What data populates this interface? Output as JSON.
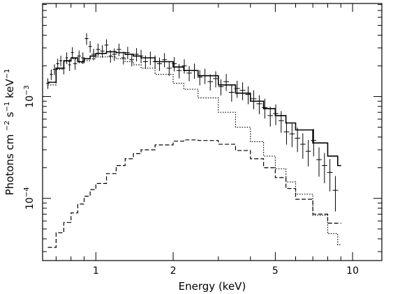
{
  "chart_data": {
    "type": "line",
    "title": "",
    "xlabel": "Energy (keV)",
    "ylabel": "Photons cm",
    "ylabel_tail": [
      {
        "text": "−2",
        "sup": true
      },
      {
        "text": " s",
        "sup": false
      },
      {
        "text": "−1",
        "sup": true
      },
      {
        "text": " keV",
        "sup": false
      },
      {
        "text": "−1",
        "sup": true
      }
    ],
    "x_scale": "log",
    "y_scale": "log",
    "xlim": [
      0.62,
      13.0
    ],
    "ylim": [
      2.45e-05,
      0.0082
    ],
    "x_ticks": [
      {
        "value": 1,
        "label": "1"
      },
      {
        "value": 2,
        "label": "2"
      },
      {
        "value": 5,
        "label": "5"
      },
      {
        "value": 10,
        "label": "10"
      }
    ],
    "x_minor_ticks": [
      0.7,
      0.8,
      0.9,
      3,
      4,
      6,
      7,
      8,
      9
    ],
    "y_ticks": [
      {
        "value": 0.0001,
        "base": "10",
        "exp": "−4"
      },
      {
        "value": 0.001,
        "base": "10",
        "exp": "−3"
      }
    ],
    "y_minor_ticks": [
      3e-05,
      4e-05,
      5e-05,
      6e-05,
      7e-05,
      8e-05,
      9e-05,
      0.0002,
      0.0003,
      0.0004,
      0.0005,
      0.0006,
      0.0007,
      0.0008,
      0.0009,
      0.002,
      0.003,
      0.004,
      0.005,
      0.006,
      0.007,
      0.008
    ],
    "series": [
      {
        "style": "data-crosses",
        "x": [
          0.65,
          0.67,
          0.69,
          0.71,
          0.73,
          0.75,
          0.77,
          0.79,
          0.81,
          0.83,
          0.86,
          0.89,
          0.92,
          0.95,
          0.98,
          1.02,
          1.06,
          1.1,
          1.14,
          1.18,
          1.23,
          1.28,
          1.33,
          1.38,
          1.44,
          1.5,
          1.56,
          1.63,
          1.7,
          1.77,
          1.85,
          1.93,
          2.02,
          2.11,
          2.21,
          2.31,
          2.42,
          2.54,
          2.66,
          2.79,
          2.93,
          3.07,
          3.22,
          3.38,
          3.55,
          3.73,
          3.92,
          4.12,
          4.33,
          4.55,
          4.78,
          5.02,
          5.27,
          5.53,
          5.81,
          6.1,
          6.4,
          6.72,
          7.05,
          7.4,
          7.77,
          8.16,
          8.57
        ],
        "y": [
          0.00135,
          0.00165,
          0.00185,
          0.0021,
          0.00225,
          0.0019,
          0.0024,
          0.00205,
          0.0027,
          0.0021,
          0.0025,
          0.0024,
          0.0037,
          0.0031,
          0.0026,
          0.0029,
          0.0028,
          0.0032,
          0.0025,
          0.0026,
          0.0029,
          0.0024,
          0.0027,
          0.0023,
          0.0026,
          0.0025,
          0.0022,
          0.0024,
          0.0022,
          0.0021,
          0.0023,
          0.0019,
          0.0021,
          0.0018,
          0.002,
          0.0017,
          0.0018,
          0.00155,
          0.0016,
          0.0014,
          0.0015,
          0.00125,
          0.0014,
          0.0011,
          0.0012,
          0.00115,
          0.00105,
          0.00095,
          0.00085,
          0.00078,
          0.00065,
          0.00068,
          0.00058,
          0.00045,
          0.00043,
          0.00039,
          0.00034,
          0.00029,
          0.00037,
          0.00024,
          0.00021,
          0.00018,
          0.00012
        ],
        "y_err_frac": [
          0.12,
          0.12,
          0.12,
          0.12,
          0.12,
          0.13,
          0.13,
          0.13,
          0.13,
          0.13,
          0.13,
          0.13,
          0.13,
          0.13,
          0.13,
          0.14,
          0.14,
          0.14,
          0.14,
          0.14,
          0.14,
          0.14,
          0.14,
          0.14,
          0.15,
          0.15,
          0.15,
          0.15,
          0.15,
          0.15,
          0.16,
          0.16,
          0.16,
          0.16,
          0.16,
          0.17,
          0.17,
          0.17,
          0.17,
          0.18,
          0.18,
          0.18,
          0.19,
          0.19,
          0.19,
          0.2,
          0.2,
          0.21,
          0.21,
          0.22,
          0.22,
          0.23,
          0.24,
          0.25,
          0.26,
          0.27,
          0.28,
          0.29,
          0.3,
          0.32,
          0.33,
          0.35,
          0.38
        ]
      },
      {
        "style": "step-solid",
        "x": [
          0.65,
          0.7,
          0.75,
          0.8,
          0.85,
          0.9,
          0.95,
          1.0,
          1.1,
          1.2,
          1.3,
          1.4,
          1.5,
          1.7,
          2.0,
          2.2,
          2.5,
          3.0,
          3.5,
          4.0,
          4.5,
          5.0,
          5.5,
          6.0,
          7.0,
          8.0,
          8.75
        ],
        "y": [
          0.00138,
          0.0019,
          0.00225,
          0.0024,
          0.0022,
          0.00235,
          0.0025,
          0.00265,
          0.00275,
          0.0027,
          0.0026,
          0.0025,
          0.0024,
          0.0022,
          0.00195,
          0.0018,
          0.0016,
          0.0013,
          0.00108,
          0.0009,
          0.00076,
          0.00065,
          0.00055,
          0.00047,
          0.00035,
          0.00026,
          0.00021
        ]
      },
      {
        "style": "step-dotted",
        "x": [
          0.65,
          0.7,
          0.75,
          0.8,
          0.85,
          0.9,
          0.95,
          1.0,
          1.1,
          1.2,
          1.3,
          1.4,
          1.5,
          1.7,
          2.0,
          2.2,
          2.5,
          3.0,
          3.5,
          4.0,
          4.5,
          5.0,
          5.5,
          6.0,
          7.0,
          8.0,
          8.75
        ],
        "y": [
          0.0013,
          0.00185,
          0.0022,
          0.00235,
          0.00215,
          0.00225,
          0.00235,
          0.00245,
          0.00245,
          0.00235,
          0.0022,
          0.00205,
          0.0019,
          0.00165,
          0.00135,
          0.00118,
          0.00097,
          0.0007,
          0.0005,
          0.00036,
          0.00026,
          0.000195,
          0.000145,
          0.00011,
          6.8e-05,
          4.5e-05,
          3.5e-05
        ]
      },
      {
        "style": "step-dashed",
        "x": [
          0.65,
          0.7,
          0.75,
          0.8,
          0.85,
          0.9,
          0.95,
          1.0,
          1.1,
          1.2,
          1.3,
          1.4,
          1.5,
          1.7,
          2.0,
          2.2,
          2.5,
          3.0,
          3.5,
          4.0,
          4.5,
          5.0,
          5.5,
          6.0,
          7.0,
          8.0,
          8.75
        ],
        "y": [
          3.3e-05,
          4.6e-05,
          5.8e-05,
          7.2e-05,
          8.8e-05,
          0.000105,
          0.000122,
          0.00014,
          0.000175,
          0.00021,
          0.000245,
          0.000275,
          0.0003,
          0.000335,
          0.000365,
          0.000375,
          0.00037,
          0.00034,
          0.000295,
          0.000245,
          0.0002,
          0.00016,
          0.000125,
          9.8e-05,
          7e-05,
          5.7e-05,
          5.7e-05
        ]
      }
    ]
  }
}
